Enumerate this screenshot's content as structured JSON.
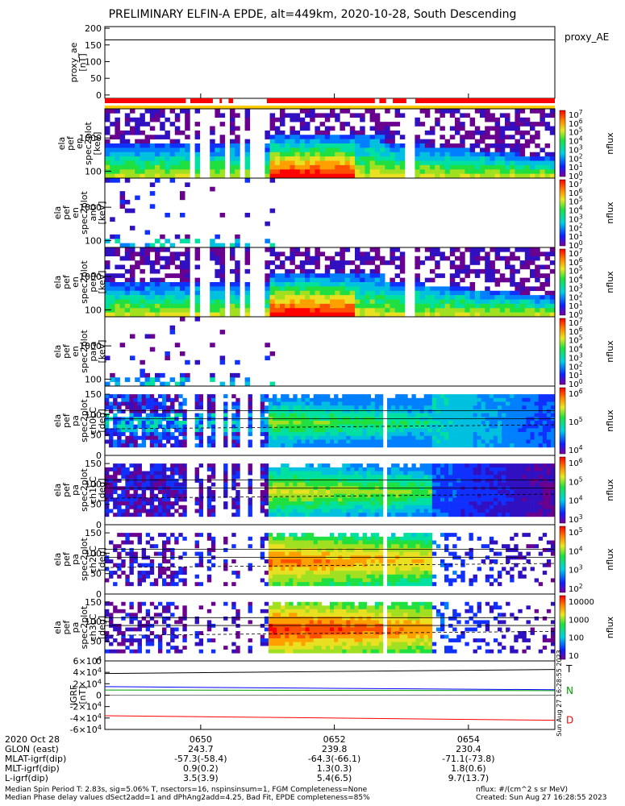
{
  "title": "PRELIMINARY ELFIN-A EPDE, alt=449km, 2020-10-28, South Descending",
  "chart_data": [
    {
      "type": "line",
      "panel": "proxy_ae",
      "ylabel": [
        "proxy_ae",
        "[nT]"
      ],
      "yticks": [
        "200",
        "150",
        "100",
        "50",
        "0"
      ],
      "ylim": [
        -10,
        205
      ],
      "legend": "proxy_AE",
      "series": [
        {
          "name": "proxy_AE",
          "x": [
            0,
            1
          ],
          "y": [
            165,
            165
          ]
        }
      ]
    },
    {
      "type": "heatmap",
      "panel": "pef energy spectrum",
      "ylabel": [
        "ela",
        "pef",
        "en",
        "spec2plot",
        "[keV]"
      ],
      "yticks": [
        "1000",
        "100"
      ],
      "log_y": true,
      "colorbar_label": "nflux",
      "colorbar_ticks": [
        "10^7",
        "10^6",
        "10^5",
        "10^4",
        "10^3",
        "10^2",
        "10^1",
        "10^0"
      ]
    },
    {
      "type": "heatmap",
      "panel": "pef energy spectrum (anti)",
      "ylabel": [
        "ela",
        "pef",
        "en",
        "spec2plot",
        "anti",
        "[keV]"
      ],
      "yticks": [
        "1000",
        "100"
      ],
      "log_y": true,
      "colorbar_label": "nflux",
      "colorbar_ticks": [
        "10^7",
        "10^6",
        "10^5",
        "10^4",
        "10^3",
        "10^2",
        "10^1",
        "10^0"
      ]
    },
    {
      "type": "heatmap",
      "panel": "pef energy spectrum (perp)",
      "ylabel": [
        "ela",
        "pef",
        "en",
        "spec2plot",
        "perp",
        "[keV]"
      ],
      "yticks": [
        "1000",
        "100"
      ],
      "log_y": true,
      "colorbar_label": "nflux",
      "colorbar_ticks": [
        "10^7",
        "10^6",
        "10^5",
        "10^4",
        "10^3",
        "10^2",
        "10^1",
        "10^0"
      ]
    },
    {
      "type": "heatmap",
      "panel": "pef energy spectrum (para)",
      "ylabel": [
        "ela",
        "pef",
        "en",
        "spec2plot",
        "para",
        "[keV]"
      ],
      "yticks": [
        "1000",
        "100"
      ],
      "log_y": true,
      "colorbar_label": "nflux",
      "colorbar_ticks": [
        "10^7",
        "10^6",
        "10^5",
        "10^4",
        "10^3",
        "10^2",
        "10^1",
        "10^0"
      ]
    },
    {
      "type": "heatmap",
      "panel": "pa ch0LC",
      "ylabel": [
        "ela",
        "pef",
        "pa",
        "spec2plot",
        "ch0LC",
        "[deg]"
      ],
      "yticks": [
        "150",
        "100",
        "50",
        "0"
      ],
      "ylim": [
        0,
        170
      ],
      "colorbar_label": "nflux",
      "colorbar_ticks": [
        "10^6",
        "10^5",
        "10^4"
      ]
    },
    {
      "type": "heatmap",
      "panel": "pa ch1LC",
      "ylabel": [
        "ela",
        "pef",
        "pa",
        "spec2plot",
        "ch1LC",
        "[deg]"
      ],
      "yticks": [
        "150",
        "100",
        "50",
        "0"
      ],
      "ylim": [
        0,
        170
      ],
      "colorbar_label": "nflux",
      "colorbar_ticks": [
        "10^6",
        "10^5",
        "10^4",
        "10^3"
      ]
    },
    {
      "type": "heatmap",
      "panel": "pa ch2LC",
      "ylabel": [
        "ela",
        "pef",
        "pa",
        "spec2plot",
        "ch2LC",
        "[deg]"
      ],
      "yticks": [
        "150",
        "100",
        "50",
        "0"
      ],
      "ylim": [
        0,
        170
      ],
      "colorbar_label": "nflux",
      "colorbar_ticks": [
        "10^5",
        "10^4",
        "10^3",
        "10^2"
      ]
    },
    {
      "type": "heatmap",
      "panel": "pa ch3LC",
      "ylabel": [
        "ela",
        "pef",
        "pa",
        "spec2plot",
        "ch3LC",
        "[deg]"
      ],
      "yticks": [
        "150",
        "100",
        "50",
        "0"
      ],
      "ylim": [
        0,
        170
      ],
      "colorbar_label": "nflux",
      "colorbar_ticks": [
        "10000",
        "1000",
        "100",
        "10"
      ]
    },
    {
      "type": "line",
      "panel": "IGRF",
      "ylabel": [
        "IGRF",
        "[nT]"
      ],
      "yticks": [
        "6×10^4",
        "4×10^4",
        "2×10^4",
        "0",
        "-2×10^4",
        "-4×10^4",
        "-6×10^4"
      ],
      "ylim": [
        -60000,
        60000
      ],
      "legend": [
        "T",
        "N",
        "D"
      ],
      "series": [
        {
          "name": "T",
          "color": "#000000",
          "x": [
            0,
            1
          ],
          "y": [
            38000,
            45000
          ]
        },
        {
          "name": "N",
          "color": "#0000ff",
          "x": [
            0,
            0.5,
            1
          ],
          "y": [
            15000,
            12000,
            9500
          ]
        },
        {
          "name": "N (green)",
          "color": "#00a000",
          "x": [
            0,
            1
          ],
          "y": [
            9000,
            8000
          ]
        },
        {
          "name": "D",
          "color": "#ff0000",
          "x": [
            0,
            1
          ],
          "y": [
            -36000,
            -44000
          ]
        }
      ]
    }
  ],
  "colors": {
    "status_red": "#ff0000",
    "status_yellow": "#ffcc00",
    "frame": "#000000"
  },
  "xaxis": {
    "time_ticks": [
      "0650",
      "0652",
      "0654"
    ],
    "date": "2020 Oct 28",
    "rows": [
      {
        "label": "GLON (east)",
        "values": [
          "243.7",
          "239.8",
          "230.4"
        ]
      },
      {
        "label": "MLAT-igrf(dip)",
        "values": [
          "-57.3(-58.4)",
          "-64.3(-66.1)",
          "-71.1(-73.8)"
        ]
      },
      {
        "label": "MLT-igrf(dip)",
        "values": [
          "0.9(0.2)",
          "1.3(0.3)",
          "1.8(0.6)"
        ]
      },
      {
        "label": "L-igrf(dip)",
        "values": [
          "3.5(3.9)",
          "5.4(6.5)",
          "9.7(13.7)"
        ]
      }
    ]
  },
  "footnote": {
    "line1": "Median Spin Period T: 2.83s, sig=5.06% T, nsectors=16, nspinsinsum=1, FGM Completeness=None",
    "line2": "Median Phase delay values dSect2add=1 and dPhAng2add=4.25, Bad Fit, EPDE completeness=85%",
    "units": "nflux: #/(cm^2 s sr MeV)",
    "created": "Created: Sun Aug 27 16:28:55 2023",
    "created_vertical": "Sun Aug 27 16:28:55 2023"
  }
}
